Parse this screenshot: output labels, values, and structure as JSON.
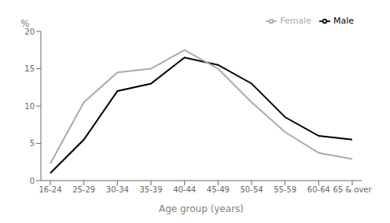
{
  "chart_data": {
    "type": "line",
    "xlabel": "Age group (years)",
    "ylabel": "%",
    "categories": [
      "16-24",
      "25-29",
      "30-34",
      "35-39",
      "40-44",
      "45-49",
      "50-54",
      "55-59",
      "60-64",
      "65 & over"
    ],
    "series": [
      {
        "name": "Male",
        "color": "#000000",
        "values": [
          1.0,
          5.5,
          12.0,
          13.0,
          16.5,
          15.5,
          13.0,
          8.5,
          6.0,
          5.5
        ]
      },
      {
        "name": "Female",
        "color": "#aaaaaa",
        "values": [
          2.3,
          10.5,
          14.5,
          15.0,
          17.5,
          15.0,
          10.5,
          6.5,
          3.7,
          2.9
        ]
      }
    ],
    "ylim": [
      0,
      20
    ],
    "yticks": [
      0,
      5,
      10,
      15,
      20
    ],
    "legend": "upper right",
    "grid": false
  }
}
